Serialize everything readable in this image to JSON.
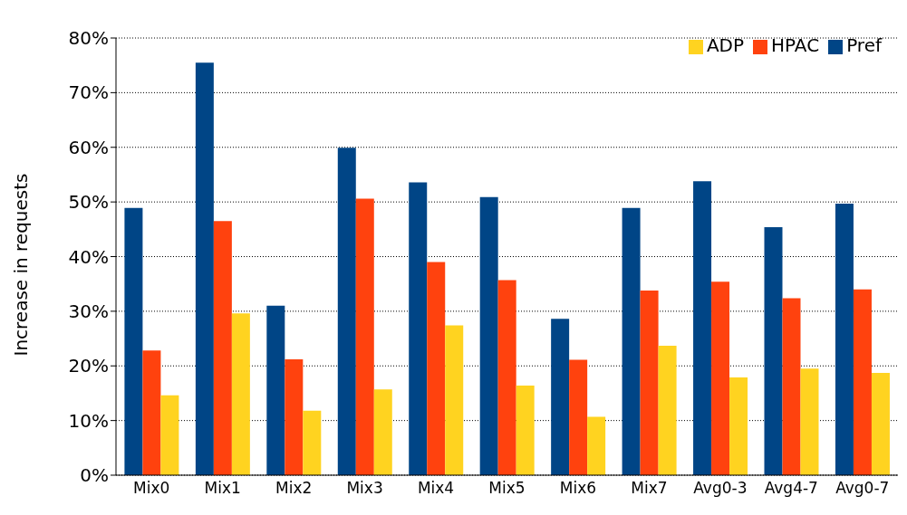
{
  "chart_data": {
    "type": "bar",
    "ylabel": "Increase in requests",
    "categories": [
      "Mix0",
      "Mix1",
      "Mix2",
      "Mix3",
      "Mix4",
      "Mix5",
      "Mix6",
      "Mix7",
      "Avg0-3",
      "Avg4-7",
      "Avg0-7"
    ],
    "series": [
      {
        "name": "Pref",
        "color": "#004586",
        "values": [
          48.9,
          75.5,
          31.0,
          59.9,
          53.6,
          50.9,
          28.6,
          48.9,
          53.8,
          45.4,
          49.7
        ]
      },
      {
        "name": "HPAC",
        "color": "#ff420e",
        "values": [
          22.8,
          46.5,
          21.2,
          50.6,
          39.0,
          35.7,
          21.1,
          33.8,
          35.4,
          32.4,
          34.0
        ]
      },
      {
        "name": "ADP",
        "color": "#ffd320",
        "values": [
          14.6,
          29.6,
          11.8,
          15.7,
          27.4,
          16.4,
          10.7,
          23.7,
          17.9,
          19.5,
          18.7
        ]
      }
    ],
    "ylim": [
      0,
      80
    ],
    "yticks": [
      {
        "value": 0,
        "label": "0%"
      },
      {
        "value": 10,
        "label": "10%"
      },
      {
        "value": 20,
        "label": "20%"
      },
      {
        "value": 30,
        "label": "30%"
      },
      {
        "value": 40,
        "label": "40%"
      },
      {
        "value": 50,
        "label": "50%"
      },
      {
        "value": 60,
        "label": "60%"
      },
      {
        "value": 70,
        "label": "70%"
      },
      {
        "value": 80,
        "label": "80%"
      }
    ],
    "grid": "y",
    "legend": "top right"
  }
}
